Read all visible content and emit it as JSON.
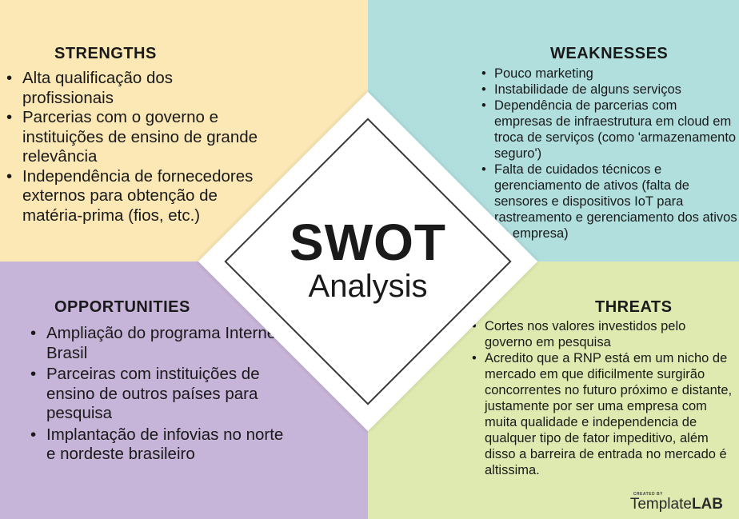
{
  "colors": {
    "strengths_bg": "#fbe8b5",
    "weaknesses_bg": "#b0dfde",
    "opportunities_bg": "#c6b4d9",
    "threats_bg": "#dfeab0"
  },
  "center": {
    "title": "SWOT",
    "subtitle": "Analysis"
  },
  "strengths": {
    "heading": "STRENGTHS",
    "items": [
      "Alta qualificação dos profissionais",
      "Parcerias com o governo e instituições de ensino de grande relevância",
      "Independência de fornecedores externos para obtenção de matéria-prima (fios, etc.)"
    ]
  },
  "weaknesses": {
    "heading": "WEAKNESSES",
    "items": [
      "Pouco marketing",
      "Instabilidade de alguns serviços",
      "Dependência de parcerias com empresas de infraestrutura em cloud em troca de serviços (como 'armazenamento seguro')",
      "Falta de cuidados técnicos e gerenciamento de ativos (falta de sensores e dispositivos IoT para rastreamento e gerenciamento dos ativos da empresa)"
    ]
  },
  "opportunities": {
    "heading": "OPPORTUNITIES",
    "items": [
      "Ampliação do programa Internet Brasil",
      "Parceiras com instituições de ensino de outros países para pesquisa",
      "Implantação de infovias no norte e nordeste brasileiro"
    ]
  },
  "threats": {
    "heading": "THREATS",
    "items": [
      "Cortes nos valores investidos pelo governo em pesquisa",
      "Acredito que a RNP está em um nicho de mercado em que dificilmente surgirão concorrentes no futuro próximo e distante, justamente por ser uma empresa com muita qualidade e independencia de qualquer tipo de fator impeditivo, além disso a barreira de entrada no mercado é altissima."
    ]
  },
  "logo": {
    "small": "CREATED BY",
    "brand1": "Template",
    "brand2": "LAB"
  }
}
